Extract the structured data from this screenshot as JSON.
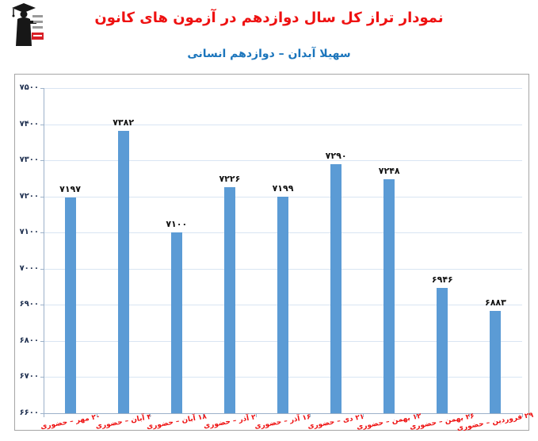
{
  "header": {
    "title": "نمودار تراز کل سال دوازدهم در آزمون های کانون",
    "subtitle": "سهیلا آبدان – دوازدهم انسانی",
    "logo_label": "کانون فرهنگی آموزش"
  },
  "chart_data": {
    "type": "bar",
    "title": "نمودار تراز کل سال دوازدهم در آزمون های کانون",
    "subtitle": "سهیلا آبدان – دوازدهم انسانی",
    "categories": [
      "۲۰ مهر – حضوری",
      "۴ آبان – حضوری",
      "۱۸ آبان – حضوری",
      "۲ آذر – حضوری",
      "۱۶ آذر – حضوری",
      "۲۱ دی – حضوری",
      "۱۲ بهمن – حضوری",
      "۲۶ بهمن – حضوری",
      "۲۹ فروردین – حضوری"
    ],
    "values": [
      7197,
      7382,
      7100,
      7226,
      7199,
      7290,
      7248,
      6946,
      6883
    ],
    "value_labels": [
      "۷۱۹۷",
      "۷۳۸۲",
      "۷۱۰۰",
      "۷۲۲۶",
      "۷۱۹۹",
      "۷۲۹۰",
      "۷۲۴۸",
      "۶۹۴۶",
      "۶۸۸۳"
    ],
    "y_ticks": [
      {
        "value": 7500,
        "label": "۷۵۰۰"
      },
      {
        "value": 7400,
        "label": "۷۴۰۰"
      },
      {
        "value": 7300,
        "label": "۷۳۰۰"
      },
      {
        "value": 7200,
        "label": "۷۲۰۰"
      },
      {
        "value": 7100,
        "label": "۷۱۰۰"
      },
      {
        "value": 7000,
        "label": "۷۰۰۰"
      },
      {
        "value": 6900,
        "label": "۶۹۰۰"
      },
      {
        "value": 6800,
        "label": "۶۸۰۰"
      },
      {
        "value": 6700,
        "label": "۶۷۰۰"
      },
      {
        "value": 6600,
        "label": "۶۶۰۰"
      }
    ],
    "ylim": [
      6600,
      7500
    ],
    "xlabel": "",
    "ylabel": "",
    "grid": true,
    "legend": "none"
  },
  "colors": {
    "title_red": "#ee1111",
    "subtitle_blue": "#1b75bc",
    "bar_blue": "#5b9bd5",
    "gridline": "#d9e5f3",
    "axis_line": "#9cb1c9",
    "y_label": "#1f3050",
    "data_label": "#111111",
    "x_label_red": "#ee1111",
    "frame_border": "#a6a6a6"
  }
}
